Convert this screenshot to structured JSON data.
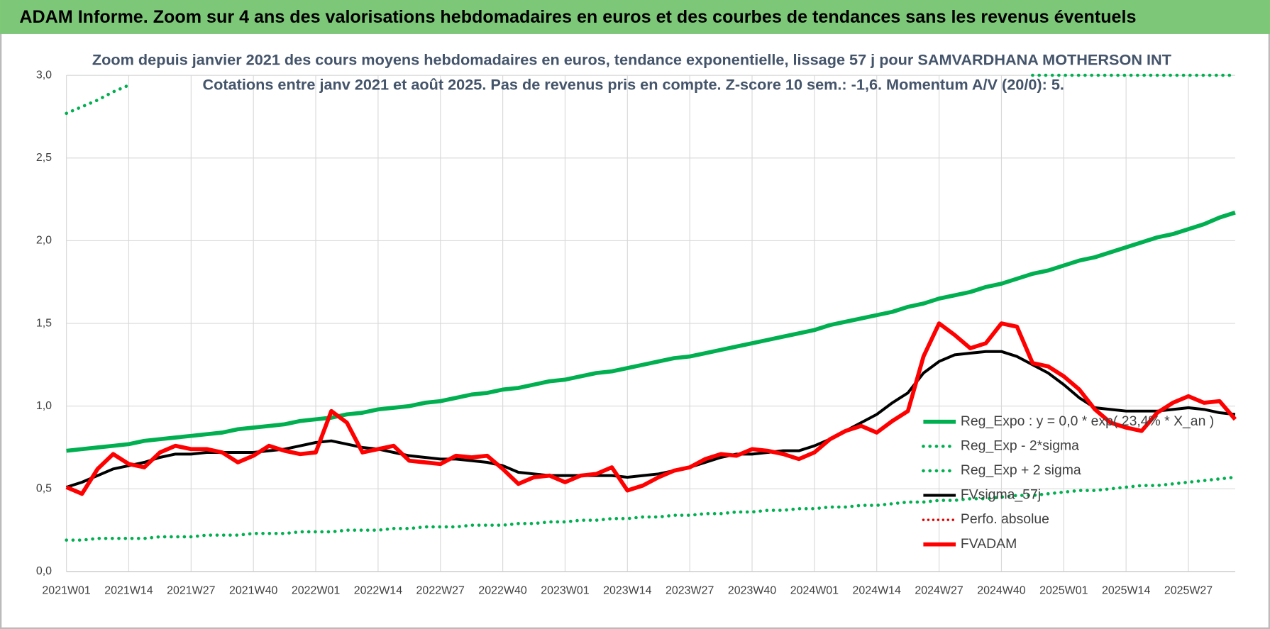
{
  "chart_data": {
    "type": "line",
    "banner": "ADAM Informe. Zoom sur 4 ans des valorisations hebdomadaires en euros et des courbes de tendances sans les revenus éventuels",
    "title": "Zoom depuis janvier 2021 des cours moyens hebdomadaires en euros, tendance exponentielle, lissage 57 j pour SAMVARDHANA MOTHERSON INT",
    "subtitle": "Cotations entre janv 2021 et août 2025.  Pas de revenus pris en compte. Z-score 10 sem.: -1,6. Momentum A/V (20/0): 5.",
    "categories": [
      "2021W01",
      null,
      null,
      null,
      "2021W14",
      null,
      null,
      null,
      "2021W27",
      null,
      null,
      null,
      "2021W40",
      null,
      null,
      null,
      "2022W01",
      null,
      null,
      null,
      "2022W14",
      null,
      null,
      null,
      "2022W27",
      null,
      null,
      null,
      "2022W40",
      null,
      null,
      null,
      "2023W01",
      null,
      null,
      null,
      "2023W14",
      null,
      null,
      null,
      "2023W27",
      null,
      null,
      null,
      "2023W40",
      null,
      null,
      null,
      "2024W01",
      null,
      null,
      null,
      "2024W14",
      null,
      null,
      null,
      "2024W27",
      null,
      null,
      null,
      "2024W40",
      null,
      null,
      null,
      "2025W01",
      null,
      null,
      null,
      "2025W14",
      null,
      null,
      null,
      "2025W27",
      null,
      null,
      null
    ],
    "ylim": [
      0,
      3
    ],
    "yticks": [
      {
        "value": 0,
        "label": "0,0"
      },
      {
        "value": 0.5,
        "label": "0,5"
      },
      {
        "value": 1,
        "label": "1,0"
      },
      {
        "value": 1.5,
        "label": "1,5"
      },
      {
        "value": 2,
        "label": "2,0"
      },
      {
        "value": 2.5,
        "label": "2,5"
      },
      {
        "value": 3,
        "label": "3,0"
      }
    ],
    "grid": true,
    "legend": "lower right",
    "series": [
      {
        "name": "Reg_Expo : y = 0,0 * exp( 23,4% *  X_an )",
        "color": "#00b050",
        "dash": "solid",
        "width": 5,
        "values": [
          0.73,
          0.74,
          0.75,
          0.76,
          0.77,
          0.79,
          0.8,
          0.81,
          0.82,
          0.83,
          0.84,
          0.86,
          0.87,
          0.88,
          0.89,
          0.91,
          0.92,
          0.93,
          0.95,
          0.96,
          0.98,
          0.99,
          1.0,
          1.02,
          1.03,
          1.05,
          1.07,
          1.08,
          1.1,
          1.11,
          1.13,
          1.15,
          1.16,
          1.18,
          1.2,
          1.21,
          1.23,
          1.25,
          1.27,
          1.29,
          1.3,
          1.32,
          1.34,
          1.36,
          1.38,
          1.4,
          1.42,
          1.44,
          1.46,
          1.49,
          1.51,
          1.53,
          1.55,
          1.57,
          1.6,
          1.62,
          1.65,
          1.67,
          1.69,
          1.72,
          1.74,
          1.77,
          1.8,
          1.82,
          1.85,
          1.88,
          1.9,
          1.93,
          1.96,
          1.99,
          2.02,
          2.04,
          2.07,
          2.1,
          2.14,
          2.17
        ]
      },
      {
        "name": "Reg_Exp - 2*sigma",
        "color": "#00b050",
        "dash": "dotted",
        "width": 4,
        "values": [
          0.19,
          0.19,
          0.2,
          0.2,
          0.2,
          0.2,
          0.21,
          0.21,
          0.21,
          0.22,
          0.22,
          0.22,
          0.23,
          0.23,
          0.23,
          0.24,
          0.24,
          0.24,
          0.25,
          0.25,
          0.25,
          0.26,
          0.26,
          0.27,
          0.27,
          0.27,
          0.28,
          0.28,
          0.28,
          0.29,
          0.29,
          0.3,
          0.3,
          0.31,
          0.31,
          0.32,
          0.32,
          0.33,
          0.33,
          0.34,
          0.34,
          0.35,
          0.35,
          0.36,
          0.36,
          0.37,
          0.37,
          0.38,
          0.38,
          0.39,
          0.39,
          0.4,
          0.4,
          0.41,
          0.42,
          0.42,
          0.43,
          0.43,
          0.44,
          0.44,
          0.45,
          0.46,
          0.46,
          0.47,
          0.48,
          0.49,
          0.49,
          0.5,
          0.51,
          0.52,
          0.52,
          0.53,
          0.54,
          0.55,
          0.56,
          0.57
        ]
      },
      {
        "name": "Reg_Exp + 2 sigma",
        "color": "#00b050",
        "dash": "dotted",
        "width": 4,
        "values": [
          2.77,
          2.81,
          2.85,
          2.9,
          2.94,
          null,
          null,
          null,
          null,
          null,
          null,
          null,
          null,
          null,
          null,
          null,
          null,
          null,
          null,
          null,
          null,
          null,
          null,
          null,
          null,
          null,
          null,
          null,
          null,
          null,
          null,
          null,
          null,
          null,
          null,
          null,
          null,
          null,
          null,
          null,
          null,
          null,
          null,
          null,
          null,
          null,
          null,
          null,
          null,
          null,
          null,
          null,
          null,
          null,
          null,
          null,
          null,
          null,
          null,
          null,
          null,
          null,
          3,
          3,
          3,
          3,
          3,
          3,
          3,
          3,
          3,
          3,
          3,
          3,
          3,
          3
        ]
      },
      {
        "name": "FVsigma_57j",
        "color": "#000000",
        "dash": "solid",
        "width": 3.5,
        "values": [
          0.51,
          0.54,
          0.58,
          0.62,
          0.64,
          0.66,
          0.69,
          0.71,
          0.71,
          0.72,
          0.72,
          0.72,
          0.72,
          0.73,
          0.74,
          0.76,
          0.78,
          0.79,
          0.77,
          0.75,
          0.74,
          0.72,
          0.7,
          0.69,
          0.68,
          0.68,
          0.67,
          0.66,
          0.64,
          0.6,
          0.59,
          0.58,
          0.58,
          0.58,
          0.58,
          0.58,
          0.57,
          0.58,
          0.59,
          0.61,
          0.63,
          0.66,
          0.69,
          0.71,
          0.71,
          0.72,
          0.73,
          0.73,
          0.76,
          0.8,
          0.85,
          0.9,
          0.95,
          1.02,
          1.08,
          1.2,
          1.27,
          1.31,
          1.32,
          1.33,
          1.33,
          1.3,
          1.25,
          1.2,
          1.13,
          1.05,
          0.99,
          0.98,
          0.97,
          0.97,
          0.97,
          0.98,
          0.99,
          0.98,
          0.96,
          0.95
        ]
      },
      {
        "name": "Perfo. absolue",
        "color": "#e00000",
        "dash": "dotted",
        "width": 3,
        "values": [
          null,
          null,
          null,
          null,
          null,
          null,
          null,
          null,
          null,
          null,
          null,
          null,
          null,
          null,
          null,
          null,
          null,
          null,
          null,
          null,
          null,
          null,
          null,
          null,
          null,
          null,
          null,
          null,
          null,
          null,
          null,
          null,
          null,
          null,
          null,
          null,
          null,
          null,
          null,
          null,
          null,
          null,
          null,
          null,
          null,
          null,
          null,
          null,
          null,
          null,
          null,
          null,
          null,
          null,
          null,
          null,
          null,
          null,
          null,
          null,
          null,
          null,
          null,
          null,
          null,
          null,
          null,
          null,
          null,
          null,
          null,
          null,
          null,
          null,
          null,
          null
        ]
      },
      {
        "name": "FVADAM",
        "color": "#ff0000",
        "dash": "solid",
        "width": 5,
        "values": [
          0.51,
          0.47,
          0.62,
          0.71,
          0.65,
          0.63,
          0.72,
          0.76,
          0.74,
          0.74,
          0.72,
          0.66,
          0.7,
          0.76,
          0.73,
          0.71,
          0.72,
          0.97,
          0.9,
          0.72,
          0.74,
          0.76,
          0.67,
          0.66,
          0.65,
          0.7,
          0.69,
          0.7,
          0.62,
          0.53,
          0.57,
          0.58,
          0.54,
          0.58,
          0.59,
          0.63,
          0.49,
          0.52,
          0.57,
          0.61,
          0.63,
          0.68,
          0.71,
          0.7,
          0.74,
          0.73,
          0.71,
          0.68,
          0.72,
          0.8,
          0.85,
          0.88,
          0.84,
          0.91,
          0.97,
          1.3,
          1.5,
          1.43,
          1.35,
          1.38,
          1.5,
          1.48,
          1.26,
          1.24,
          1.18,
          1.1,
          0.98,
          0.9,
          0.87,
          0.85,
          0.96,
          1.02,
          1.06,
          1.02,
          1.03,
          0.92
        ]
      }
    ]
  }
}
